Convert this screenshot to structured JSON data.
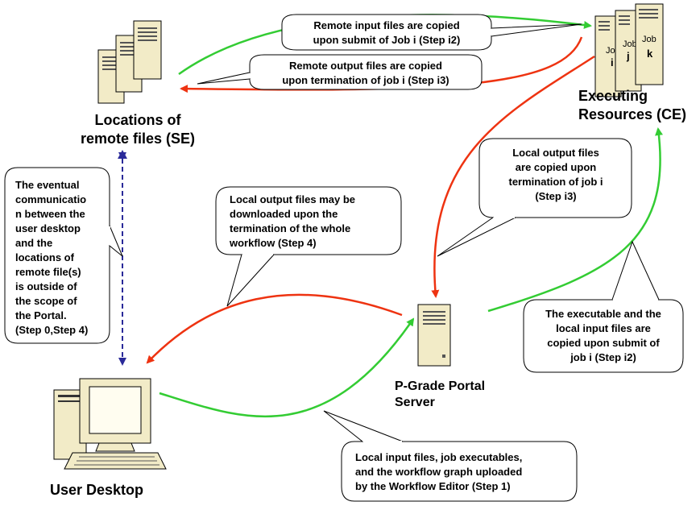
{
  "nodes": {
    "se": [
      "Locations of",
      "remote files (SE)"
    ],
    "ce": [
      "Executing",
      "Resources (CE)"
    ],
    "portal": [
      "P-Grade Portal",
      "Server"
    ],
    "desktop": [
      "User Desktop"
    ]
  },
  "jobs": {
    "word": "Job",
    "letters": [
      "i",
      "j",
      "k"
    ]
  },
  "callouts": {
    "remote_input": [
      "Remote input files are copied",
      "upon  submit of Job i (Step i2)"
    ],
    "remote_output": [
      "Remote output files are copied",
      "upon  termination of job i (Step i3)"
    ],
    "local_output_ce": [
      "Local output files",
      "are copied upon",
      "termination of job i",
      "(Step i3)"
    ],
    "local_output_dl": [
      "Local output files may be",
      "downloaded upon the",
      "termination  of the whole",
      "workflow  (Step 4)"
    ],
    "scope_note": [
      "The eventual",
      "communicatio",
      "n between the",
      "user desktop",
      "and the",
      "locations  of",
      "remote file(s)",
      "is outside of",
      "the scope of",
      "the Portal.",
      "(Step 0,Step 4)"
    ],
    "exec_input": [
      "The executable and the",
      "local input files are",
      "copied upon submit of",
      "job i (Step i2)"
    ],
    "upload": [
      "Local input files, job executables,",
      "and the  workflow graph uploaded",
      "by the Workflow Editor (Step 1)"
    ]
  },
  "colors": {
    "green_arrow": "#33cc33",
    "red_arrow": "#ee3311",
    "dashed_arrow": "#2a2a99",
    "server_fill": "#f2ebc7"
  }
}
